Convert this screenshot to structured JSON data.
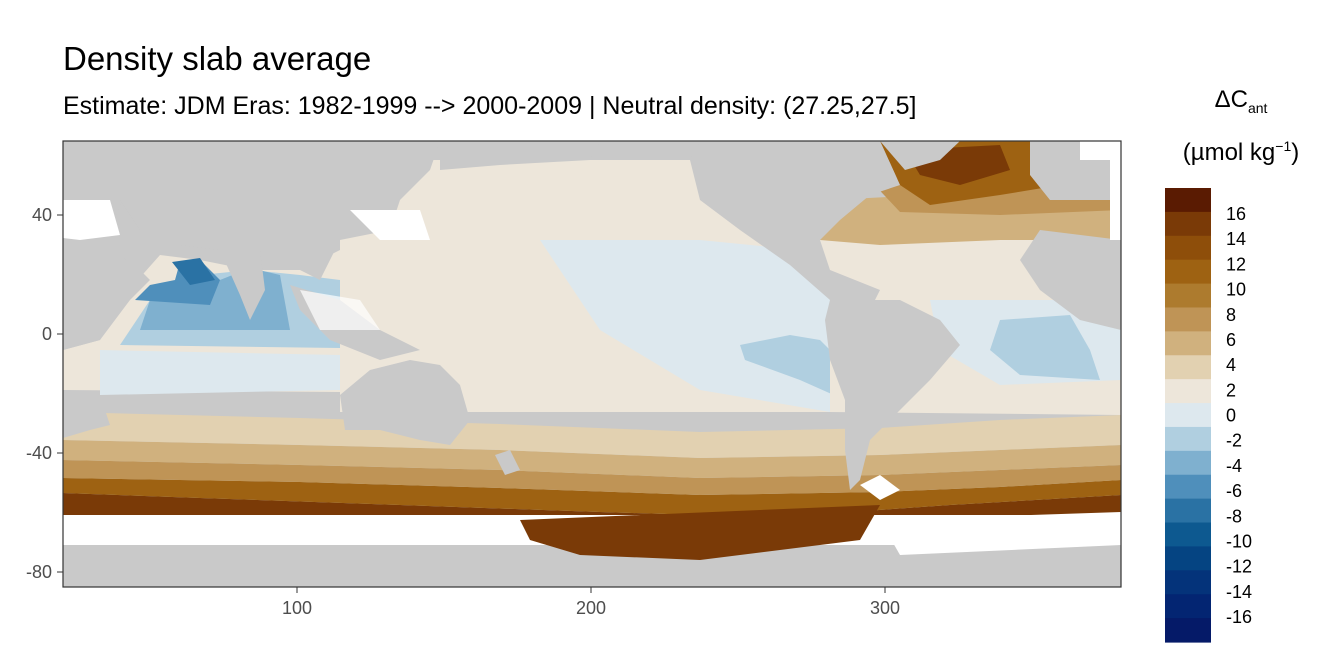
{
  "title": "Density slab average",
  "subtitle": "Estimate: JDM Eras: 1982-1999 --> 2000-2009 | Neutral density: (27.25,27.5]",
  "legend": {
    "symbol": "ΔC",
    "symbol_sub": "ant",
    "unit_prefix": "(µmol kg",
    "unit_sup": "−1",
    "unit_suffix": ")",
    "labels": [
      "16",
      "14",
      "12",
      "10",
      "8",
      "6",
      "4",
      "2",
      "0",
      "-2",
      "-4",
      "-6",
      "-8",
      "-10",
      "-12",
      "-14",
      "-16"
    ],
    "colors": [
      "#5a1b02",
      "#7a3a07",
      "#8e4e0a",
      "#9e6212",
      "#ad7b2e",
      "#bf9456",
      "#d0b17e",
      "#e2d1b1",
      "#ede6da",
      "#dde8ee",
      "#b0cfe0",
      "#7fb0cf",
      "#4f8fbb",
      "#2a72a4",
      "#0d5990",
      "#054482",
      "#04337a",
      "#032572",
      "#051a68"
    ]
  },
  "chart_data": {
    "type": "heatmap",
    "title": "Density slab average",
    "subtitle": "Estimate: JDM Eras: 1982-1999 --> 2000-2009 | Neutral density: (27.25,27.5]",
    "xlabel": "",
    "ylabel": "",
    "x_ticks": [
      100,
      200,
      300
    ],
    "y_ticks": [
      40,
      0,
      -40,
      -80
    ],
    "xlim": [
      20,
      380
    ],
    "ylim": [
      -85,
      65
    ],
    "legend_breaks": [
      16,
      14,
      12,
      10,
      8,
      6,
      4,
      2,
      0,
      -2,
      -4,
      -6,
      -8,
      -10,
      -12,
      -14,
      -16
    ],
    "legend_position": "right",
    "grid": false
  }
}
